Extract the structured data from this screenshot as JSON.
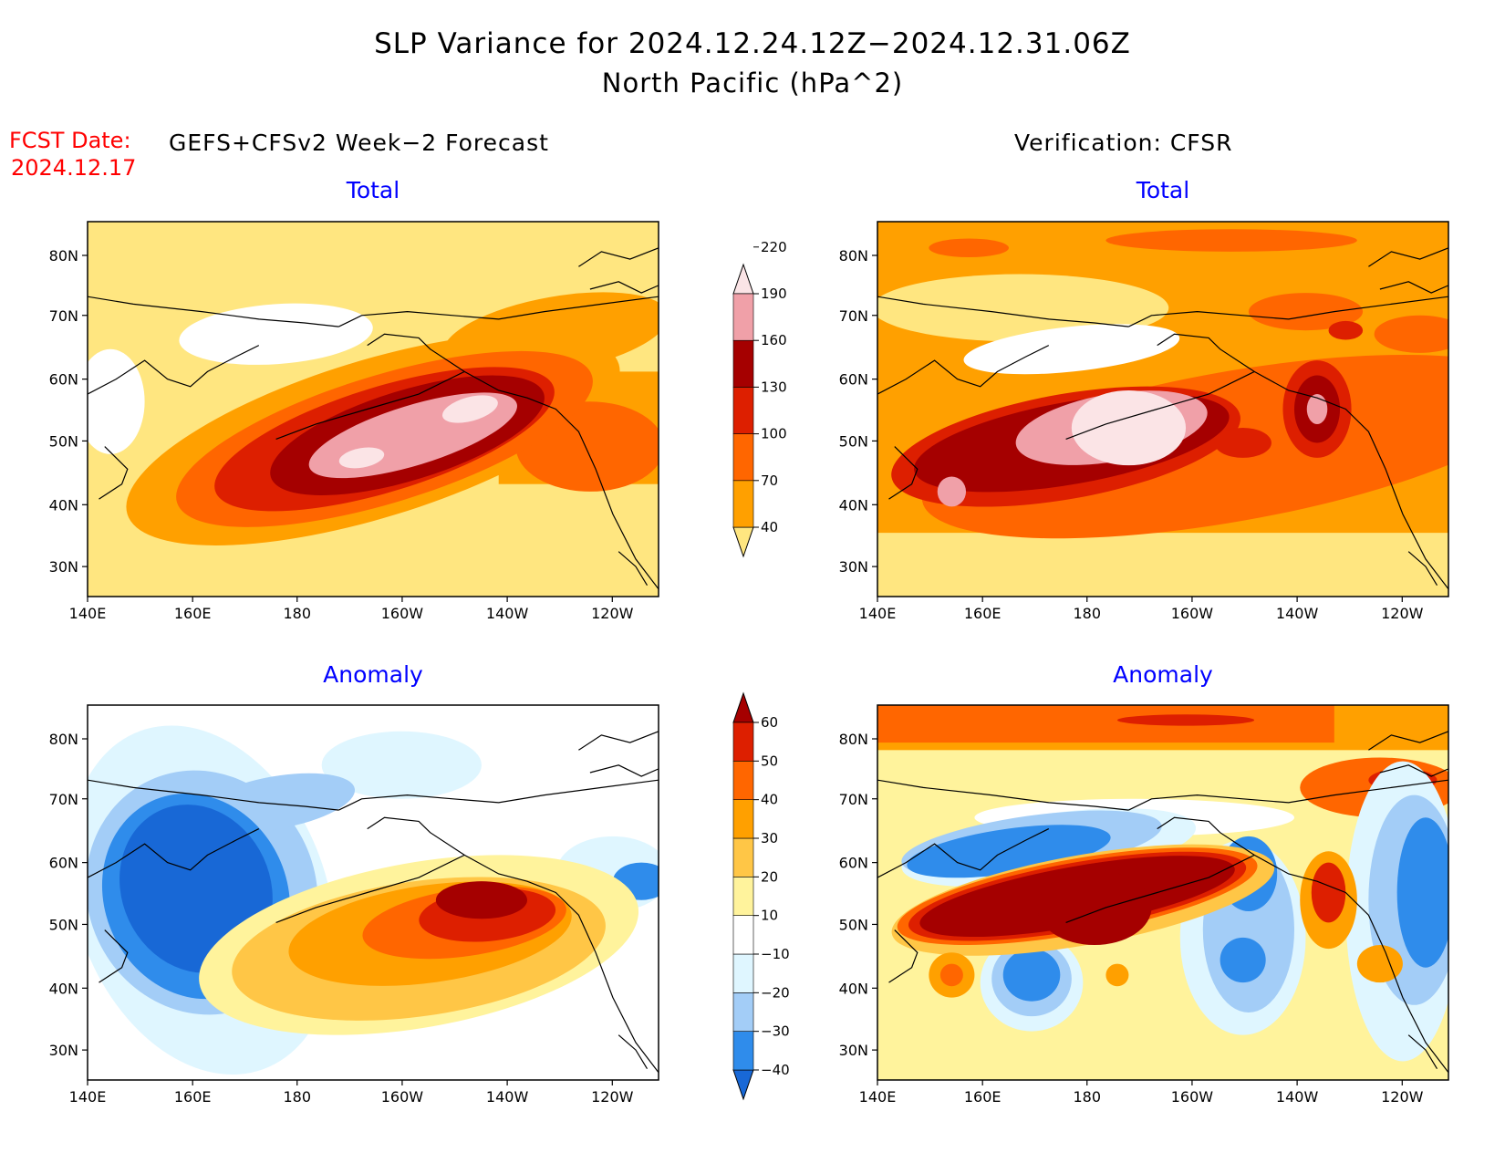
{
  "header": {
    "title_line1": "SLP Variance for 2024.12.24.12Z−2024.12.31.06Z",
    "title_line2": "North Pacific (hPa^2)",
    "fcst_label": "FCST Date:",
    "fcst_date": "2024.12.17"
  },
  "columns": {
    "left": "GEFS+CFSv2 Week−2 Forecast",
    "right": "Verification: CFSR"
  },
  "panels": {
    "fcst_total": "Total",
    "verif_total": "Total",
    "fcst_anom": "Anomaly",
    "verif_anom": "Anomaly"
  },
  "axes": {
    "lat_labels": [
      "30N",
      "40N",
      "50N",
      "60N",
      "70N",
      "80N"
    ],
    "lon_labels": [
      "140E",
      "160E",
      "180",
      "160W",
      "140W",
      "120W"
    ]
  },
  "colorbars": {
    "total": {
      "levels": [
        "40",
        "70",
        "100",
        "130",
        "160",
        "190",
        "220"
      ],
      "colors": [
        "#ffe680",
        "#ffa000",
        "#ff6600",
        "#dd1f00",
        "#a50000",
        "#f0a0a8",
        "#fbe4e6"
      ]
    },
    "anomaly": {
      "levels": [
        "−40",
        "−30",
        "−20",
        "−10",
        "10",
        "20",
        "30",
        "40",
        "50",
        "60"
      ],
      "colors": [
        "#1868d6",
        "#2f8ceb",
        "#a3cdf7",
        "#dff6ff",
        "#ffffff",
        "#fff39c",
        "#ffc646",
        "#ffa000",
        "#ff6600",
        "#dd1f00",
        "#a50000"
      ]
    }
  },
  "colors": {
    "title_text": "#000000",
    "fcst_date_text": "#ff0000",
    "panel_label_text": "#0000ff"
  }
}
